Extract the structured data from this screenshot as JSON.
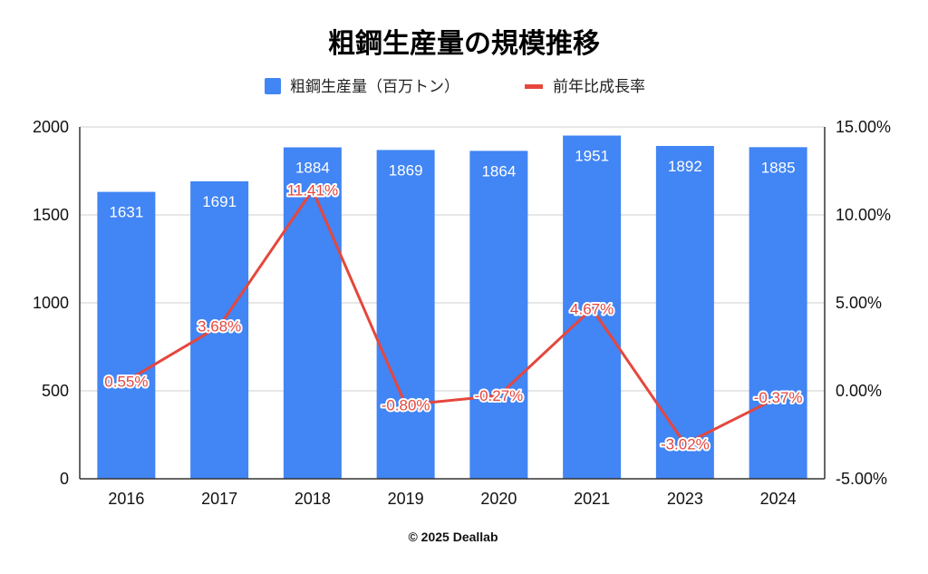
{
  "chart_data": {
    "type": "bar",
    "title": "粗鋼生産量の規模推移",
    "categories": [
      "2016",
      "2017",
      "2018",
      "2019",
      "2020",
      "2021",
      "2023",
      "2024"
    ],
    "series": [
      {
        "name": "粗鋼生産量（百万トン）",
        "type": "bar",
        "axis": "left",
        "color": "#4285f4",
        "values": [
          1631,
          1691,
          1884,
          1869,
          1864,
          1951,
          1892,
          1885
        ],
        "labels": [
          "1631",
          "1691",
          "1884",
          "1869",
          "1864",
          "1951",
          "1892",
          "1885"
        ]
      },
      {
        "name": "前年比成長率",
        "type": "line",
        "axis": "right",
        "color": "#e5473d",
        "values": [
          0.55,
          3.68,
          11.41,
          -0.8,
          -0.27,
          4.67,
          -3.02,
          -0.37
        ],
        "labels": [
          "0.55%",
          "3.68%",
          "11.41%",
          "-0.80%",
          "-0.27%",
          "4.67%",
          "-3.02%",
          "-0.37%"
        ]
      }
    ],
    "y_left": {
      "range": [
        0,
        2000
      ],
      "ticks": [
        0,
        500,
        1000,
        1500,
        2000
      ],
      "tick_labels": [
        "0",
        "500",
        "1000",
        "1500",
        "2000"
      ]
    },
    "y_right": {
      "range": [
        -5,
        15
      ],
      "ticks": [
        -5,
        0,
        5,
        10,
        15
      ],
      "tick_labels": [
        "-5.00%",
        "0.00%",
        "5.00%",
        "10.00%",
        "15.00%"
      ]
    },
    "grid": true,
    "legend": "top"
  },
  "footer": "© 2025 Deallab"
}
